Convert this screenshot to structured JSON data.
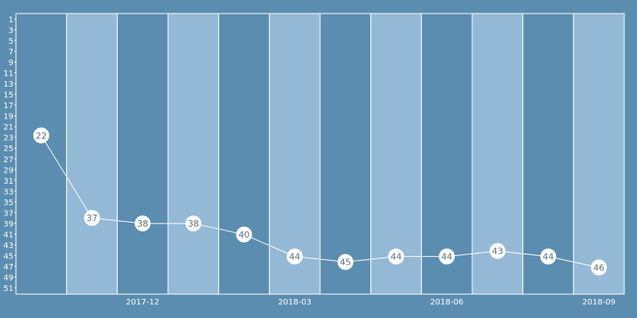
{
  "chart_data": {
    "type": "line",
    "y_axis": {
      "min": 1,
      "max": 52,
      "inverted": true,
      "tick_labels": [
        "1",
        "3",
        "5",
        "7",
        "9",
        "11",
        "13",
        "15",
        "17",
        "19",
        "21",
        "23",
        "25",
        "27",
        "29",
        "31",
        "33",
        "35",
        "37",
        "39",
        "41",
        "43",
        "45",
        "47",
        "49",
        "51"
      ]
    },
    "x_tick_labels": [
      {
        "label": "2017-12",
        "period": 2.5
      },
      {
        "label": "2018-03",
        "period": 5.5
      },
      {
        "label": "2018-06",
        "period": 8.5
      },
      {
        "label": "2018-09",
        "period": 11.5
      }
    ],
    "series": [
      {
        "values": [
          22,
          37,
          38,
          38,
          40,
          44,
          45,
          44,
          44,
          43,
          44,
          46
        ]
      }
    ],
    "colors": {
      "background": "#5b8db0",
      "band_dark": "#5b8db0",
      "band_light": "#94b9d6",
      "line": "#ffffff",
      "marker_fill": "#ffffff",
      "label_text": "#5b6e7e"
    }
  }
}
